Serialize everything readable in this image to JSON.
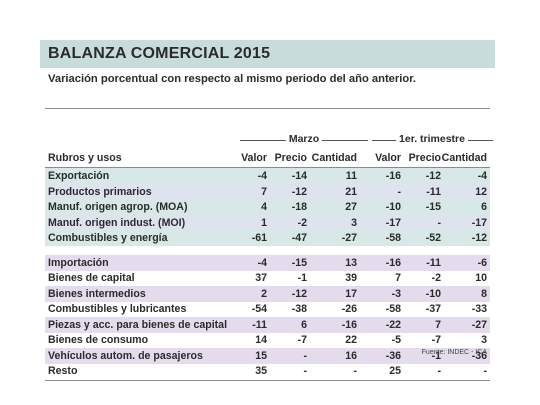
{
  "title": "BALANZA COMERCIAL 2015",
  "subtitle": "Variación porcentual con respecto al mismo periodo del año anterior.",
  "groups": {
    "marzo": "Marzo",
    "trimestre": "1er. trimestre"
  },
  "columns": {
    "rubros": "Rubros y usos",
    "valor1": "Valor",
    "precio1": "Precio",
    "cantidad1": "Cantidad",
    "valor2": "Valor",
    "precio2": "Precio",
    "cantidad2": "Cantidad"
  },
  "export_rows": [
    {
      "label": "Exportación",
      "values": [
        "-4",
        "-14",
        "11",
        "-16",
        "-12",
        "-4"
      ]
    },
    {
      "label": "Productos primarios",
      "values": [
        "7",
        "-12",
        "21",
        "-",
        "-11",
        "12"
      ]
    },
    {
      "label": "Manuf. origen agrop. (MOA)",
      "values": [
        "4",
        "-18",
        "27",
        "-10",
        "-15",
        "6"
      ]
    },
    {
      "label": "Manuf. origen indust. (MOI)",
      "values": [
        "1",
        "-2",
        "3",
        "-17",
        "-",
        "-17"
      ]
    },
    {
      "label": "Combustibles y energía",
      "values": [
        "-61",
        "-47",
        "-27",
        "-58",
        "-52",
        "-12"
      ]
    }
  ],
  "import_rows": [
    {
      "label": "Importación",
      "values": [
        "-4",
        "-15",
        "13",
        "-16",
        "-11",
        "-6"
      ]
    },
    {
      "label": "Bienes de capital",
      "values": [
        "37",
        "-1",
        "39",
        "7",
        "-2",
        "10"
      ]
    },
    {
      "label": "Bienes intermedios",
      "values": [
        "2",
        "-12",
        "17",
        "-3",
        "-10",
        "8"
      ]
    },
    {
      "label": "Combustibles y lubricantes",
      "values": [
        "-54",
        "-38",
        "-26",
        "-58",
        "-37",
        "-33"
      ]
    },
    {
      "label": "Piezas y acc. para bienes de capital",
      "values": [
        "-11",
        "6",
        "-16",
        "-22",
        "7",
        "-27"
      ]
    },
    {
      "label": "Bienes de consumo",
      "values": [
        "14",
        "-7",
        "22",
        "-5",
        "-7",
        "3"
      ]
    },
    {
      "label": "Vehículos autom. de pasajeros",
      "values": [
        "15",
        "-",
        "16",
        "-36",
        "-1",
        "-36"
      ]
    },
    {
      "label": "Resto",
      "values": [
        "35",
        "-",
        "-",
        "25",
        "-",
        "-"
      ]
    }
  ],
  "source": "Fuente: INDEC - ICA",
  "colors": {
    "title_bg": "#c8dddb",
    "row_green": "#d7e8e6",
    "row_blue": "#dfe3f0",
    "row_lavender": "#e4dced"
  }
}
